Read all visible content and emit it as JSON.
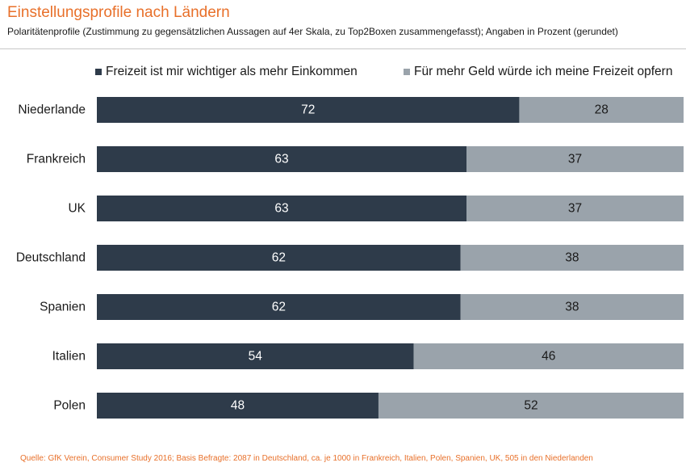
{
  "header": {
    "title": "Einstellungsprofile nach Ländern",
    "subtitle": "Polaritätenprofile (Zustimmung zu gegensätzlichen Aussagen auf 4er Skala, zu Top2Boxen zusammengefasst); Angaben in Prozent (gerundet)"
  },
  "source": "Quelle: GfK Verein, Consumer Study 2016; Basis Befragte: 2087 in Deutschland, ca. je 1000 in Frankreich, Italien, Polen, Spanien, UK, 505 in den Niederlanden",
  "colors": {
    "series1": "#2e3b4a",
    "series2": "#9aa3ab",
    "title": "#e8702a"
  },
  "chart_data": {
    "type": "bar",
    "orientation": "horizontal",
    "stacked": true,
    "title": "Einstellungsprofile nach Ländern",
    "xlim": [
      0,
      100
    ],
    "categories": [
      "Niederlande",
      "Frankreich",
      "UK",
      "Deutschland",
      "Spanien",
      "Italien",
      "Polen"
    ],
    "series": [
      {
        "name": "Freizeit ist mir wichtiger als mehr Einkommen",
        "values": [
          72,
          63,
          63,
          62,
          62,
          54,
          48
        ]
      },
      {
        "name": "Für mehr Geld würde ich meine Freizeit opfern",
        "values": [
          28,
          37,
          37,
          38,
          38,
          46,
          52
        ]
      }
    ],
    "legend_position": "top"
  }
}
